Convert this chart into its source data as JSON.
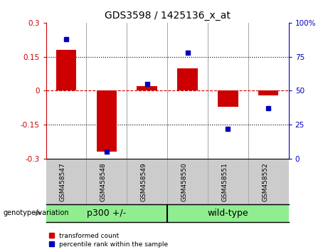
{
  "title": "GDS3598 / 1425136_x_at",
  "samples": [
    "GSM458547",
    "GSM458548",
    "GSM458549",
    "GSM458550",
    "GSM458551",
    "GSM458552"
  ],
  "transformed_count": [
    0.18,
    -0.27,
    0.02,
    0.1,
    -0.07,
    -0.02
  ],
  "percentile_rank": [
    88,
    5,
    55,
    78,
    22,
    37
  ],
  "group1_label": "p300 +/-",
  "group1_samples": [
    0,
    1,
    2
  ],
  "group2_label": "wild-type",
  "group2_samples": [
    3,
    4,
    5
  ],
  "ylim_left": [
    -0.3,
    0.3
  ],
  "ylim_right": [
    0,
    100
  ],
  "yticks_left": [
    -0.3,
    -0.15,
    0,
    0.15,
    0.3
  ],
  "ytick_labels_left": [
    "-0.3",
    "-0.15",
    "0",
    "0.15",
    "0.3"
  ],
  "yticks_right": [
    0,
    25,
    50,
    75,
    100
  ],
  "ytick_labels_right": [
    "0",
    "25",
    "50",
    "75",
    "100%"
  ],
  "bar_color": "#CC0000",
  "square_color": "#0000BB",
  "zero_line_color": "#CC0000",
  "dotted_line_color": "#000000",
  "background_plot": "#FFFFFF",
  "background_xlabel": "#CCCCCC",
  "background_group": "#90EE90",
  "legend_red_label": "transformed count",
  "legend_blue_label": "percentile rank within the sample",
  "genotype_label": "genotype/variation"
}
